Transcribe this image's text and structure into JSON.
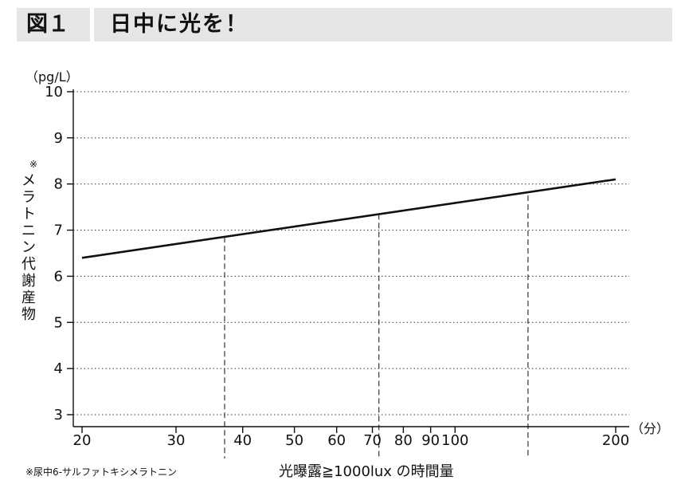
{
  "header": {
    "figure_label": "図１",
    "title": "日中に光を！"
  },
  "chart_data": {
    "type": "line",
    "title": "日中に光を！",
    "xlabel": "光曝露≧1000lux の時間量",
    "ylabel": "メラトニン代謝産物",
    "ylabel_mark": "※",
    "x_unit": "（分）",
    "y_unit": "（pg/L）",
    "x_scale": "log",
    "xlim": [
      20,
      200
    ],
    "ylim": [
      3,
      10
    ],
    "x_ticks": [
      20,
      30,
      40,
      50,
      60,
      70,
      80,
      90,
      100,
      200
    ],
    "y_ticks": [
      3,
      4,
      5,
      6,
      7,
      8,
      9,
      10
    ],
    "grid": "horizontal dotted",
    "series": [
      {
        "x": [
          20,
          200
        ],
        "y": [
          6.4,
          8.1
        ]
      }
    ],
    "reference_lines": [
      {
        "x": 37,
        "y": 6.85
      },
      {
        "x": 72,
        "y": 7.35
      },
      {
        "x": 137,
        "y": 7.75
      }
    ],
    "footnote": "※尿中6-サルファトキシメラトニン"
  }
}
